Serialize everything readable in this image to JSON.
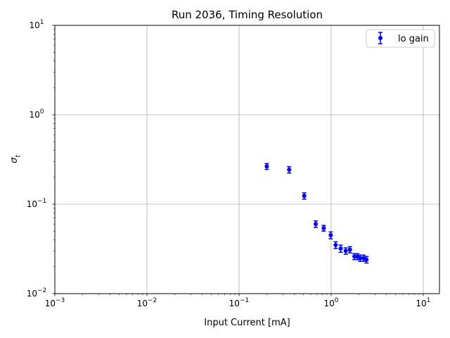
{
  "chart_data": {
    "type": "scatter",
    "title": "Run 2036, Timing Resolution",
    "xlabel": "Input Current [mA]",
    "ylabel": "σ",
    "ylabel_sub": "t",
    "xscale": "log",
    "yscale": "log",
    "xlim": [
      0.001,
      15
    ],
    "ylim": [
      0.01,
      10
    ],
    "grid": true,
    "legend_position": "top-right",
    "x_ticks": [
      {
        "value": 0.001,
        "base": "10",
        "exp": "−3"
      },
      {
        "value": 0.01,
        "base": "10",
        "exp": "−2"
      },
      {
        "value": 0.1,
        "base": "10",
        "exp": "−1"
      },
      {
        "value": 1,
        "base": "10",
        "exp": "0"
      },
      {
        "value": 10,
        "base": "10",
        "exp": "1"
      }
    ],
    "y_ticks": [
      {
        "value": 0.01,
        "base": "10",
        "exp": "−2"
      },
      {
        "value": 0.1,
        "base": "10",
        "exp": "−1"
      },
      {
        "value": 1,
        "base": "10",
        "exp": "0"
      },
      {
        "value": 10,
        "base": "10",
        "exp": "1"
      }
    ],
    "series": [
      {
        "name": "lo gain",
        "color": "#0000ff",
        "marker": "circle",
        "errorbars": true,
        "x": [
          0.2,
          0.35,
          0.51,
          0.68,
          0.83,
          0.99,
          1.12,
          1.27,
          1.44,
          1.6,
          1.79,
          1.92,
          2.07,
          2.25,
          2.42
        ],
        "y": [
          0.265,
          0.243,
          0.124,
          0.06,
          0.054,
          0.045,
          0.035,
          0.032,
          0.03,
          0.031,
          0.026,
          0.026,
          0.025,
          0.025,
          0.024
        ],
        "yerr": [
          0.02,
          0.02,
          0.01,
          0.005,
          0.004,
          0.004,
          0.003,
          0.003,
          0.0025,
          0.0025,
          0.002,
          0.002,
          0.002,
          0.002,
          0.002
        ]
      }
    ]
  }
}
